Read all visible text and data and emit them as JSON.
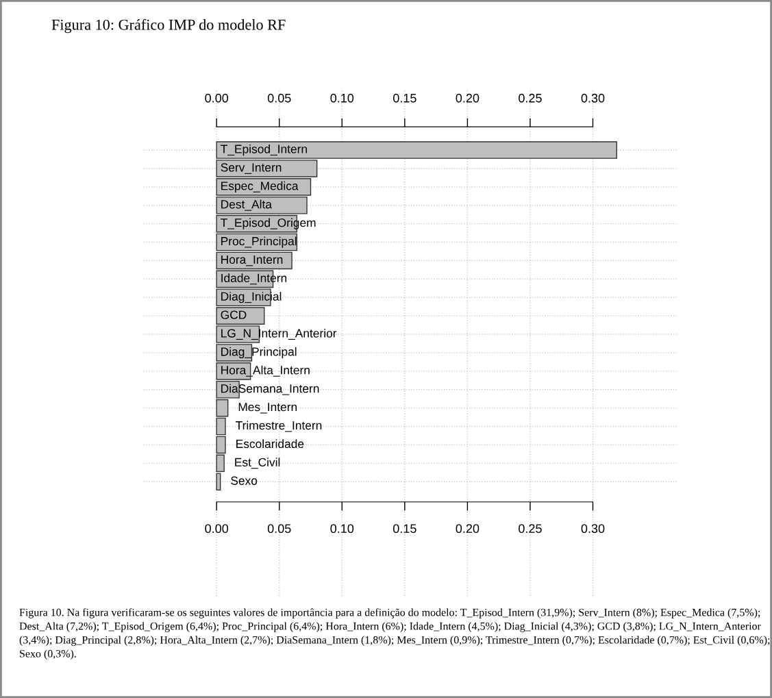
{
  "chart_data": {
    "type": "bar",
    "orientation": "horizontal",
    "title": "Figura 10: Gráfico IMP do modelo RF",
    "categories": [
      "T_Episod_Intern",
      "Serv_Intern",
      "Espec_Medica",
      "Dest_Alta",
      "T_Episod_Origem",
      "Proc_Principal",
      "Hora_Intern",
      "Idade_Intern",
      "Diag_Inicial",
      "GCD",
      "LG_N_Intern_Anterior",
      "Diag_Principal",
      "Hora_Alta_Intern",
      "DiaSemana_Intern",
      "Mes_Intern",
      "Trimestre_Intern",
      "Escolaridade",
      "Est_Civil",
      "Sexo"
    ],
    "values": [
      0.319,
      0.08,
      0.075,
      0.072,
      0.064,
      0.064,
      0.06,
      0.045,
      0.043,
      0.038,
      0.034,
      0.028,
      0.027,
      0.018,
      0.009,
      0.007,
      0.007,
      0.006,
      0.003
    ],
    "color": "#bebebe",
    "xlim": [
      -0.058,
      0.368
    ],
    "xticks": [
      {
        "value": 0,
        "label": "0.00"
      },
      {
        "value": 0.05,
        "label": "0.05"
      },
      {
        "value": 0.1,
        "label": "0.10"
      },
      {
        "value": 0.15,
        "label": "0.15"
      },
      {
        "value": 0.2,
        "label": "0.20"
      },
      {
        "value": 0.25,
        "label": "0.25"
      },
      {
        "value": 0.3,
        "label": "0.30"
      }
    ],
    "grid": true,
    "annotations": [
      "Figura 10. Na figura verificaram-se os seguintes valores de importância para a definição do modelo: T_Episod_Intern (31,9%); Serv_Intern (8%); Espec_Medica (7,5%); Dest_Alta (7,2%); T_Episod_Origem (6,4%); Proc_Principal (6,4%); Hora_Intern (6%); Idade_Intern (4,5%); Diag_Inicial (4,3%); GCD (3,8%); LG_N_Intern_Anterior (3,4%); Diag_Principal (2,8%); Hora_Alta_Intern (2,7%); DiaSemana_Intern (1,8%); Mes_Intern (0,9%); Trimestre_Intern (0,7%); Escolaridade (0,7%); Est_Civil (0,6%); Sexo (0,3%)."
    ]
  }
}
